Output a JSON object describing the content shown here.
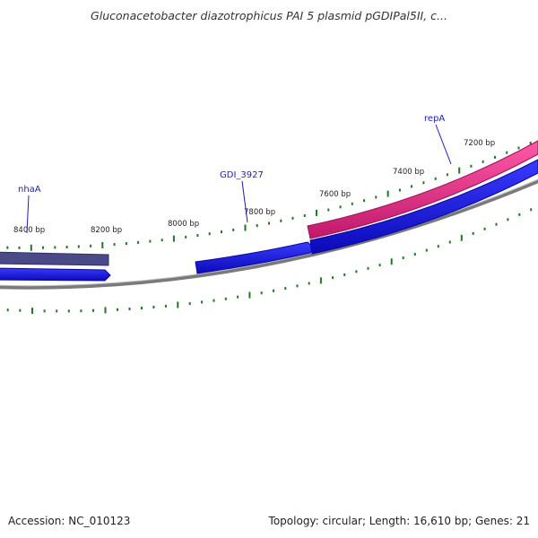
{
  "title": "Gluconacetobacter diazotrophicus PAI 5 plasmid pGDIPal5II, c...",
  "footer": {
    "accession": "Accession: NC_010123",
    "summary": "Topology: circular; Length: 16,610 bp; Genes: 21"
  },
  "bp_labels": [
    "8400 bp",
    "8200 bp",
    "8000 bp",
    "7800 bp",
    "7600 bp",
    "7400 bp",
    "7200 bp"
  ],
  "gene_labels": [
    "nhaA",
    "GDI_3927",
    "repA"
  ],
  "colors": {
    "backbone": "#7a7a7a",
    "tick": "#1e7a1e",
    "cds_blue": "#1414e0",
    "gene_slate": "#4a4a88",
    "rep_pink": "#ee1f82",
    "label_blue": "#1a1acc"
  }
}
